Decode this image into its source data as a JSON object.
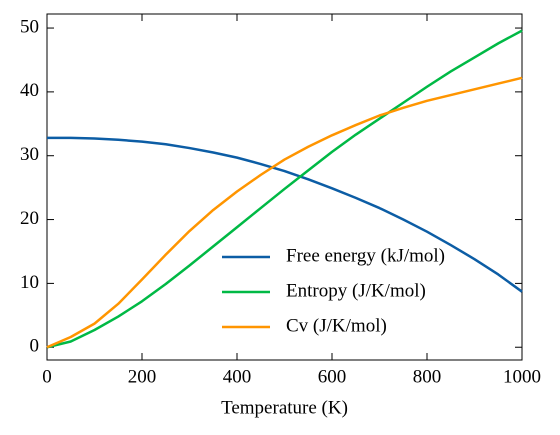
{
  "chart_data": {
    "type": "line",
    "xlabel": "Temperature (K)",
    "x": [
      0,
      50,
      100,
      150,
      200,
      250,
      300,
      350,
      400,
      450,
      500,
      550,
      600,
      650,
      700,
      750,
      800,
      850,
      900,
      950,
      1000
    ],
    "series": [
      {
        "name": "Free energy (kJ/mol)",
        "color": "#0C5DA5",
        "values": [
          32.8,
          32.8,
          32.7,
          32.5,
          32.2,
          31.8,
          31.2,
          30.5,
          29.7,
          28.7,
          27.6,
          26.3,
          24.9,
          23.4,
          21.8,
          20.0,
          18.1,
          16.0,
          13.8,
          11.4,
          8.7
        ]
      },
      {
        "name": "Entropy (J/K/mol)",
        "color": "#00B945",
        "values": [
          0,
          0.9,
          2.7,
          4.8,
          7.2,
          9.9,
          12.8,
          15.8,
          18.8,
          21.8,
          24.8,
          27.7,
          30.6,
          33.3,
          35.8,
          38.3,
          40.8,
          43.2,
          45.4,
          47.6,
          49.6
        ]
      },
      {
        "name": "Cv (J/K/mol)",
        "color": "#FF9500",
        "values": [
          0,
          1.6,
          3.7,
          6.8,
          10.6,
          14.5,
          18.2,
          21.5,
          24.4,
          27.0,
          29.4,
          31.4,
          33.2,
          34.8,
          36.3,
          37.5,
          38.6,
          39.5,
          40.4,
          41.3,
          42.2
        ]
      }
    ],
    "xlim": [
      0,
      1000
    ],
    "xticks": [
      0,
      200,
      400,
      600,
      800,
      1000
    ],
    "ylim": [
      -2,
      52.2
    ],
    "yticks": [
      0,
      10,
      20,
      30,
      40,
      50
    ],
    "legend": "lower right"
  }
}
